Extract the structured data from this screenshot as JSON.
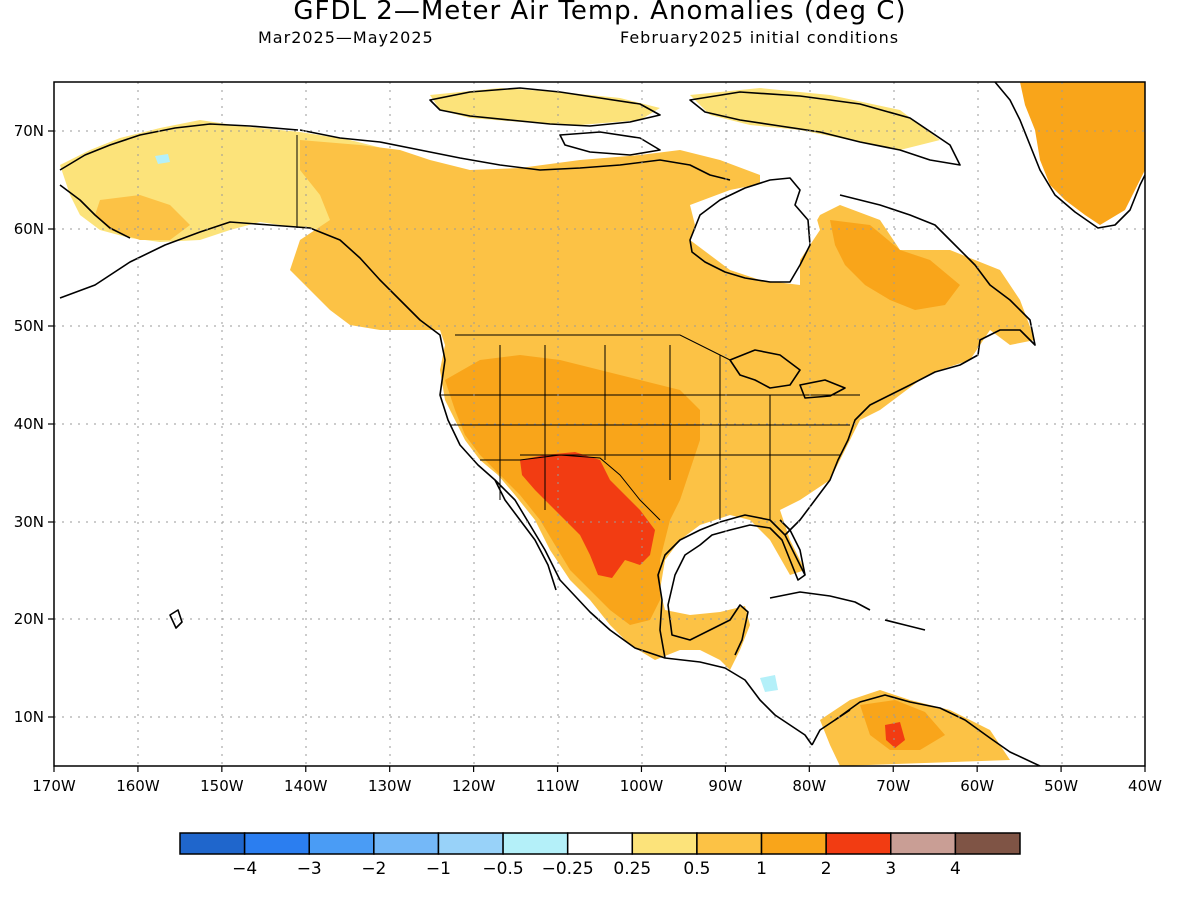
{
  "title": "GFDL 2—Meter Air Temp. Anomalies (deg C)",
  "period": "Mar2025—May2025",
  "init": "February2025 initial conditions",
  "lat_labels": [
    "70N",
    "60N",
    "50N",
    "40N",
    "30N",
    "20N",
    "10N"
  ],
  "lon_labels": [
    "170W",
    "160W",
    "150W",
    "140W",
    "130W",
    "120W",
    "110W",
    "100W",
    "90W",
    "80W",
    "70W",
    "60W",
    "50W",
    "40W"
  ],
  "colorbar": {
    "colors": [
      "#1f66cc",
      "#2b7ef0",
      "#4a9cf5",
      "#74b8f8",
      "#98d2f9",
      "#b4f0f9",
      "#ffffff",
      "#fce37a",
      "#fcc245",
      "#f9a51a",
      "#f23c12",
      "#c99e95",
      "#7f5445"
    ],
    "labels": [
      "−4",
      "−3",
      "−2",
      "−1",
      "−0.5",
      "−0.25",
      "0.25",
      "0.5",
      "1",
      "2",
      "3",
      "4"
    ]
  },
  "colors": {
    "c05": "#fce37a",
    "c1": "#fcc245",
    "c2": "#f9a51a",
    "c3": "#f23c12",
    "neg": "#b4f0f9",
    "land": "#ffffff",
    "coast": "#000000",
    "grid": "#9a9a9a"
  }
}
